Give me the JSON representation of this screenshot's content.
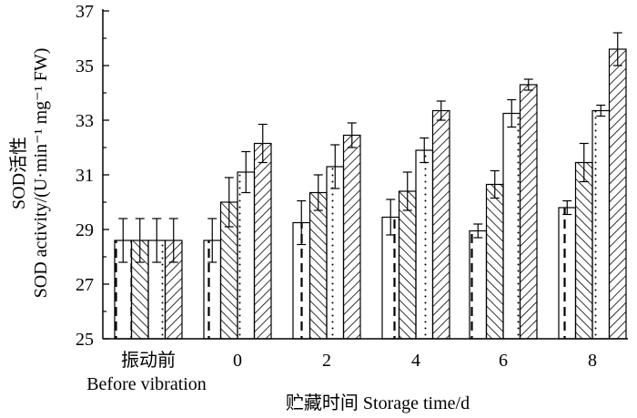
{
  "chart_data": {
    "type": "bar",
    "title": "",
    "ylabel_line1": "SOD活性",
    "ylabel_line2": "SOD activity/(U·min⁻¹ mg⁻¹ FW)",
    "xlabel": "贮藏时间  Storage time/d",
    "ylim": [
      25,
      37
    ],
    "yticks": [
      25,
      27,
      29,
      31,
      33,
      35,
      37
    ],
    "categories": [
      "振动前",
      "0",
      "2",
      "4",
      "6",
      "8"
    ],
    "category_sublabels": [
      "Before vibration",
      "",
      "",
      "",
      "",
      ""
    ],
    "series": [
      {
        "name": "series-1",
        "pattern": "dashed-vertical",
        "values": [
          28.6,
          28.6,
          29.25,
          29.45,
          28.95,
          29.8
        ],
        "errors": [
          0.8,
          0.8,
          0.8,
          0.65,
          0.25,
          0.25
        ]
      },
      {
        "name": "series-2",
        "pattern": "diagonal-left",
        "values": [
          28.6,
          30.0,
          30.35,
          30.4,
          30.65,
          31.45
        ],
        "errors": [
          0.8,
          0.9,
          0.65,
          0.7,
          0.5,
          0.7
        ]
      },
      {
        "name": "series-3",
        "pattern": "dotted",
        "values": [
          28.6,
          31.1,
          31.3,
          31.9,
          33.25,
          33.35
        ],
        "errors": [
          0.8,
          0.75,
          0.8,
          0.45,
          0.5,
          0.2
        ]
      },
      {
        "name": "series-4",
        "pattern": "diagonal-right",
        "values": [
          28.6,
          32.15,
          32.45,
          33.35,
          34.3,
          35.6
        ],
        "errors": [
          0.8,
          0.7,
          0.45,
          0.35,
          0.2,
          0.6
        ]
      }
    ]
  }
}
